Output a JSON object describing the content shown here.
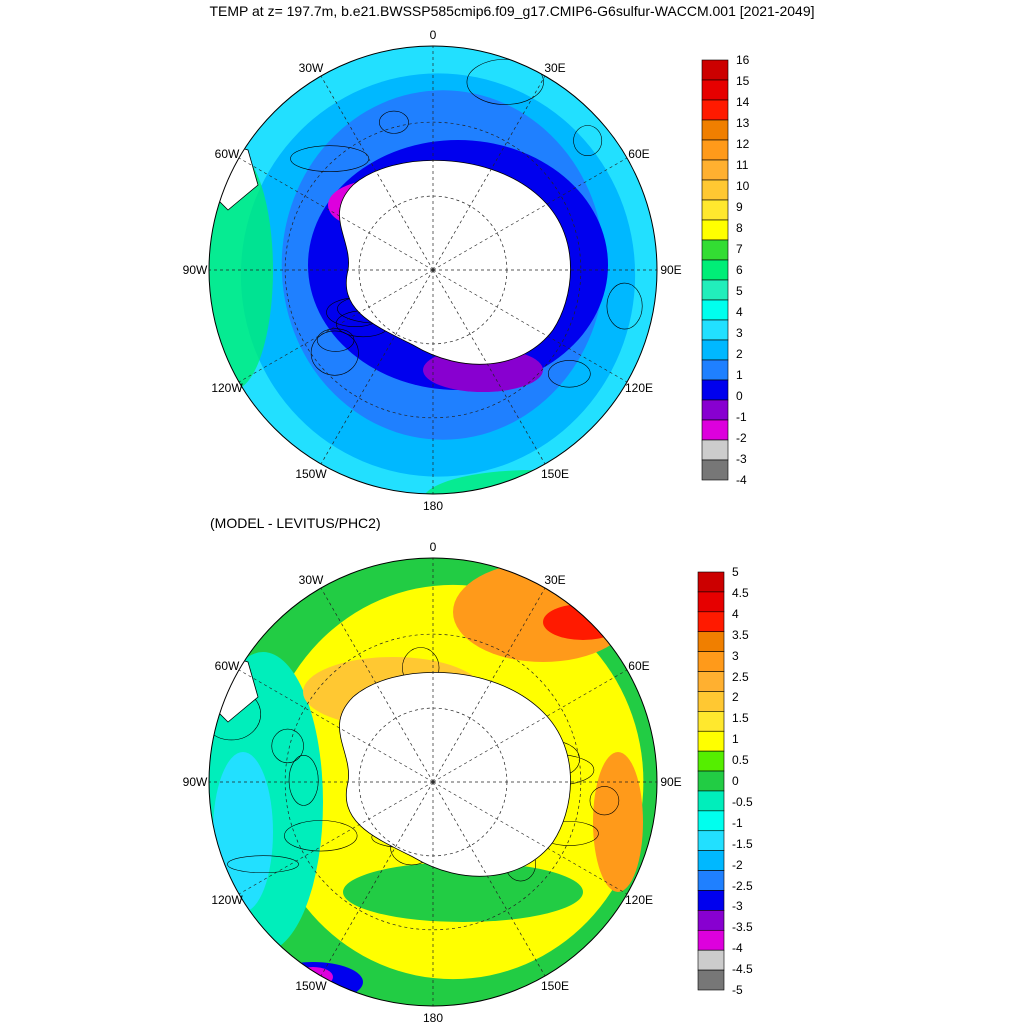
{
  "page": {
    "title": "TEMP at z= 197.7m, b.e21.BWSSP585cmip6.f09_g17.CMIP6-G6sulfur-WACCM.001 [2021-2049]",
    "subtitle": "(MODEL - LEVITUS/PHC2)"
  },
  "chart_data": [
    {
      "type": "polar-contour-map",
      "projection": "south-polar-stereographic",
      "variable": "TEMP",
      "depth": "197.7m",
      "longitude_labels": [
        "0",
        "30E",
        "60E",
        "90E",
        "120E",
        "150E",
        "180",
        "150W",
        "120W",
        "90W",
        "60W",
        "30W"
      ],
      "colorbar": {
        "levels": [
          "16",
          "15",
          "14",
          "13",
          "12",
          "11",
          "10",
          "9",
          "8",
          "7",
          "6",
          "5",
          "4",
          "3",
          "2",
          "1",
          "0",
          "-1",
          "-2",
          "-3",
          "-4"
        ],
        "colors": [
          "#cc0000",
          "#e60000",
          "#ff1a00",
          "#f07f00",
          "#ff9a1a",
          "#ffb030",
          "#ffc832",
          "#ffe82e",
          "#ffff00",
          "#33dd33",
          "#00ee77",
          "#22eebb",
          "#00ffee",
          "#22e0ff",
          "#00b8ff",
          "#1f80ff",
          "#0000ee",
          "#8800d0",
          "#dd00dd",
          "#cccccc",
          "#777777"
        ]
      }
    },
    {
      "type": "polar-contour-map",
      "projection": "south-polar-stereographic",
      "variable": "TEMP difference",
      "longitude_labels": [
        "0",
        "30E",
        "60E",
        "90E",
        "120E",
        "150E",
        "180",
        "150W",
        "120W",
        "90W",
        "60W",
        "30W"
      ],
      "colorbar": {
        "levels": [
          "5",
          "4.5",
          "4",
          "3.5",
          "3",
          "2.5",
          "2",
          "1.5",
          "1",
          "0.5",
          "0",
          "-0.5",
          "-1",
          "-1.5",
          "-2",
          "-2.5",
          "-3",
          "-3.5",
          "-4",
          "-4.5",
          "-5"
        ],
        "colors": [
          "#cc0000",
          "#e60000",
          "#ff1a00",
          "#f07f00",
          "#ff9a1a",
          "#ffb030",
          "#ffc832",
          "#ffe82e",
          "#ffff00",
          "#55ee00",
          "#22cc44",
          "#00eebb",
          "#00ffee",
          "#22e0ff",
          "#00b8ff",
          "#1f80ff",
          "#0000ee",
          "#8800d0",
          "#dd00dd",
          "#cccccc",
          "#777777"
        ]
      }
    }
  ]
}
